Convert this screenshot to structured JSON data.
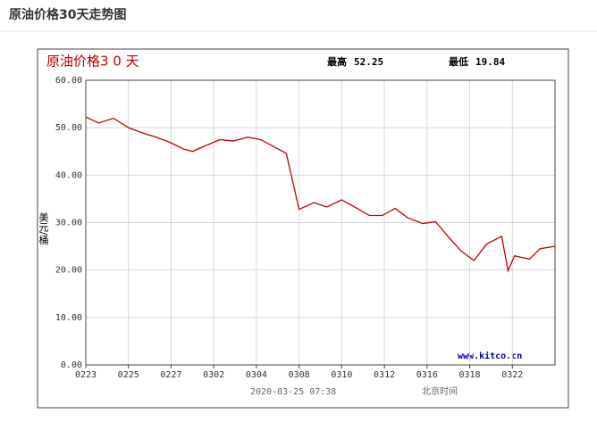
{
  "header": {
    "title": "原油价格30天走势图"
  },
  "chart_data": {
    "type": "line",
    "title": "原油价格3 0 天",
    "high": {
      "label": "最高",
      "value": 52.25
    },
    "low": {
      "label": "最低",
      "value": 19.84
    },
    "y_label": "美元/桶",
    "source": "www.kitco.cn",
    "timestamp": "2020-03-25 07:38",
    "timezone": "北京时间",
    "x": [
      0,
      0.6,
      1.3,
      2.0,
      2.6,
      3.3,
      3.9,
      4.6,
      5.0,
      5.6,
      6.3,
      6.9,
      7.6,
      8.2,
      9.4,
      10.0,
      10.7,
      11.3,
      12.0,
      12.6,
      13.3,
      13.9,
      14.5,
      15.1,
      15.8,
      16.4,
      17.0,
      17.6,
      18.2,
      18.8,
      19.5,
      19.8,
      20.1,
      20.8,
      21.3,
      22.0
    ],
    "series": [
      {
        "color": "#c00000",
        "values": [
          52.25,
          51.0,
          52.0,
          50.0,
          49.0,
          48.0,
          47.0,
          45.5,
          45.0,
          46.2,
          47.5,
          47.2,
          48.0,
          47.5,
          44.6,
          32.8,
          34.2,
          33.3,
          34.8,
          33.3,
          31.5,
          31.5,
          33.0,
          31.0,
          29.8,
          30.2,
          27.0,
          24.0,
          22.0,
          25.5,
          27.1,
          19.84,
          23.0,
          22.3,
          24.5,
          25.0
        ]
      }
    ],
    "xlim": [
      0,
      22
    ],
    "xticks": [
      {
        "value": 0,
        "label": "0223"
      },
      {
        "value": 2,
        "label": "0225"
      },
      {
        "value": 4,
        "label": "0227"
      },
      {
        "value": 6,
        "label": "0302"
      },
      {
        "value": 8,
        "label": "0304"
      },
      {
        "value": 10,
        "label": "0308"
      },
      {
        "value": 12,
        "label": "0310"
      },
      {
        "value": 14,
        "label": "0312"
      },
      {
        "value": 16,
        "label": "0316"
      },
      {
        "value": 18,
        "label": "0318"
      },
      {
        "value": 20,
        "label": "0322"
      }
    ],
    "ylim": [
      0,
      60
    ],
    "yticks": [
      {
        "value": 0,
        "label": "0.00"
      },
      {
        "value": 10,
        "label": "10.00"
      },
      {
        "value": 20,
        "label": "20.00"
      },
      {
        "value": 30,
        "label": "30.00"
      },
      {
        "value": 40,
        "label": "40.00"
      },
      {
        "value": 50,
        "label": "50.00"
      },
      {
        "value": 60,
        "label": "60.00"
      }
    ],
    "grid": true
  }
}
